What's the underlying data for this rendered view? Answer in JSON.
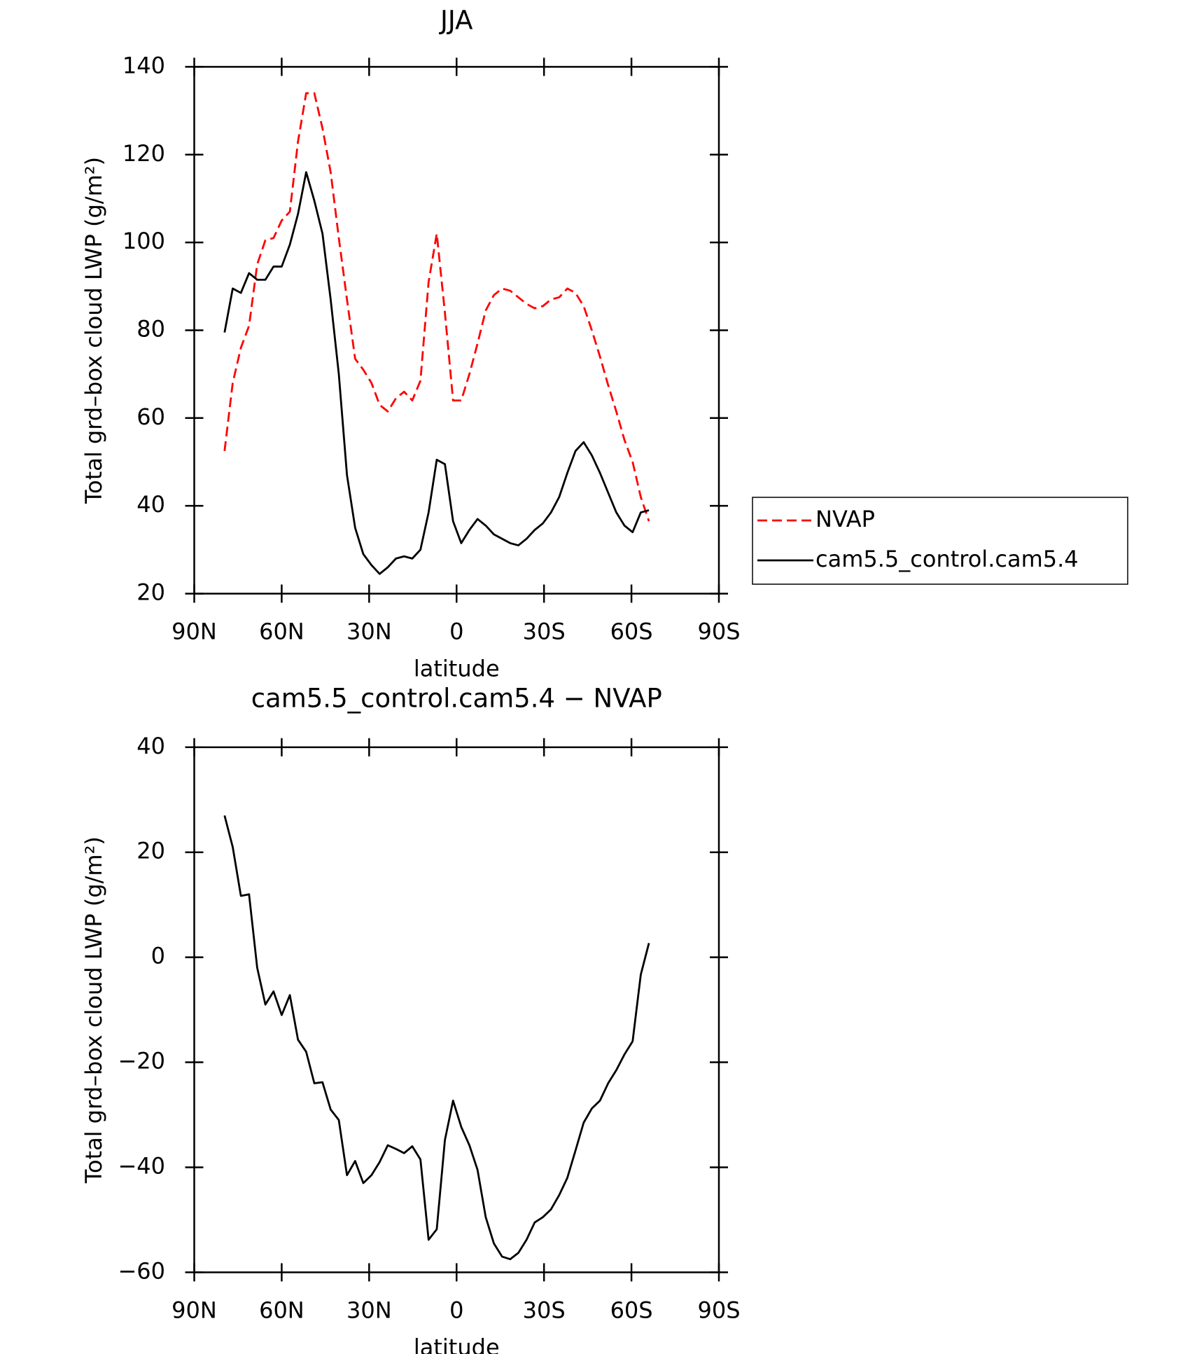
{
  "chart_data": [
    {
      "type": "line",
      "title": "JJA",
      "x_label": "latitude",
      "y_label": "Total grd–box cloud LWP (g/m²)",
      "x": [
        79.6,
        76.8,
        74.0,
        71.2,
        68.4,
        65.6,
        62.8,
        60.0,
        57.2,
        54.4,
        51.6,
        48.8,
        46.0,
        43.2,
        40.4,
        37.6,
        34.8,
        32.0,
        29.2,
        26.4,
        23.6,
        20.8,
        18.0,
        15.2,
        12.4,
        9.6,
        6.8,
        4.0,
        1.2,
        -1.6,
        -4.4,
        -7.2,
        -10.0,
        -12.8,
        -15.6,
        -18.4,
        -21.2,
        -24.0,
        -26.8,
        -29.6,
        -32.4,
        -35.2,
        -38.0,
        -40.8,
        -43.6,
        -46.4,
        -49.2,
        -52.0,
        -54.8,
        -57.6,
        -60.4,
        -63.2,
        -66.0
      ],
      "series": [
        {
          "name": "NVAP",
          "color": "#ff0000",
          "dashed": true,
          "values": [
            52.5,
            68,
            76,
            81,
            95,
            100.5,
            101,
            105,
            107,
            123,
            134,
            134,
            126,
            116,
            101,
            87,
            73.5,
            71,
            68,
            63,
            61.5,
            64.5,
            66,
            64,
            68.5,
            91,
            102,
            84,
            64,
            64,
            70,
            77,
            84.5,
            88,
            89.5,
            89,
            87.5,
            86,
            85,
            85.5,
            87,
            87.5,
            89.5,
            88.5,
            85.5,
            80,
            74,
            67.5,
            61.5,
            55,
            50,
            42,
            36.5
          ]
        },
        {
          "name": "cam5.5_control.cam5.4",
          "color": "#000000",
          "dashed": false,
          "values": [
            79.5,
            89.5,
            88.5,
            93,
            91.5,
            91.5,
            94.5,
            94.5,
            99.5,
            106.5,
            116,
            109.5,
            102,
            87,
            70,
            47,
            35,
            29,
            26.5,
            24.5,
            26,
            28,
            28.5,
            28,
            30,
            38.5,
            50.5,
            49.5,
            36.5,
            31.5,
            34.5,
            37,
            35.5,
            33.5,
            32.5,
            31.5,
            31,
            32.5,
            34.5,
            36,
            38.5,
            42,
            47.5,
            52.5,
            54.5,
            51.5,
            47.5,
            43,
            38.5,
            35.5,
            34,
            38.5,
            39
          ]
        }
      ],
      "xlim": [
        90,
        -90
      ],
      "xticks": [
        {
          "value": 90,
          "label": "90N"
        },
        {
          "value": 60,
          "label": "60N"
        },
        {
          "value": 30,
          "label": "30N"
        },
        0,
        {
          "value": -30,
          "label": "30S"
        },
        {
          "value": -60,
          "label": "60S"
        },
        {
          "value": -90,
          "label": "90S"
        }
      ],
      "ylim": [
        20,
        140
      ],
      "yticks": [
        20,
        40,
        60,
        80,
        100,
        120,
        140
      ],
      "legend": "right"
    },
    {
      "type": "line",
      "title": "cam5.5_control.cam5.4 − NVAP",
      "x_label": "latitude",
      "y_label": "Total grd–box cloud LWP (g/m²)",
      "x": [
        79.6,
        76.8,
        74.0,
        71.2,
        68.4,
        65.6,
        62.8,
        60.0,
        57.2,
        54.4,
        51.6,
        48.8,
        46.0,
        43.2,
        40.4,
        37.6,
        34.8,
        32.0,
        29.2,
        26.4,
        23.6,
        20.8,
        18.0,
        15.2,
        12.4,
        9.6,
        6.8,
        4.0,
        1.2,
        -1.6,
        -4.4,
        -7.2,
        -10.0,
        -12.8,
        -15.6,
        -18.4,
        -21.2,
        -24.0,
        -26.8,
        -29.6,
        -32.4,
        -35.2,
        -38.0,
        -40.8,
        -43.6,
        -46.4,
        -49.2,
        -52.0,
        -54.8,
        -57.6,
        -60.4,
        -63.2,
        -66.0
      ],
      "series": [
        {
          "color": "#000000",
          "dashed": false,
          "values": [
            27,
            21,
            11.7,
            12,
            -2,
            -9,
            -6.5,
            -11,
            -7.2,
            -15.7,
            -18,
            -24,
            -23.8,
            -29,
            -31,
            -41.5,
            -38.8,
            -43,
            -41.5,
            -39,
            -35.8,
            -36.5,
            -37.3,
            -36,
            -38.5,
            -53.8,
            -51.8,
            -34.8,
            -27.3,
            -32.3,
            -35.8,
            -40.5,
            -49.5,
            -54.5,
            -57,
            -57.5,
            -56.3,
            -53.8,
            -50.5,
            -49.5,
            -48,
            -45.3,
            -42,
            -36.8,
            -31.5,
            -28.8,
            -27.3,
            -24,
            -21.5,
            -18.5,
            -16,
            -3.3,
            2.7
          ]
        }
      ],
      "xlim": [
        90,
        -90
      ],
      "xticks": [
        {
          "value": 90,
          "label": "90N"
        },
        {
          "value": 60,
          "label": "60N"
        },
        {
          "value": 30,
          "label": "30N"
        },
        0,
        {
          "value": -30,
          "label": "30S"
        },
        {
          "value": -60,
          "label": "60S"
        },
        {
          "value": -90,
          "label": "90S"
        }
      ],
      "ylim": [
        -60,
        40
      ],
      "yticks": [
        {
          "value": -60,
          "label": "−60"
        },
        {
          "value": -40,
          "label": "−40"
        },
        {
          "value": -20,
          "label": "−20"
        },
        0,
        20,
        40
      ]
    }
  ]
}
